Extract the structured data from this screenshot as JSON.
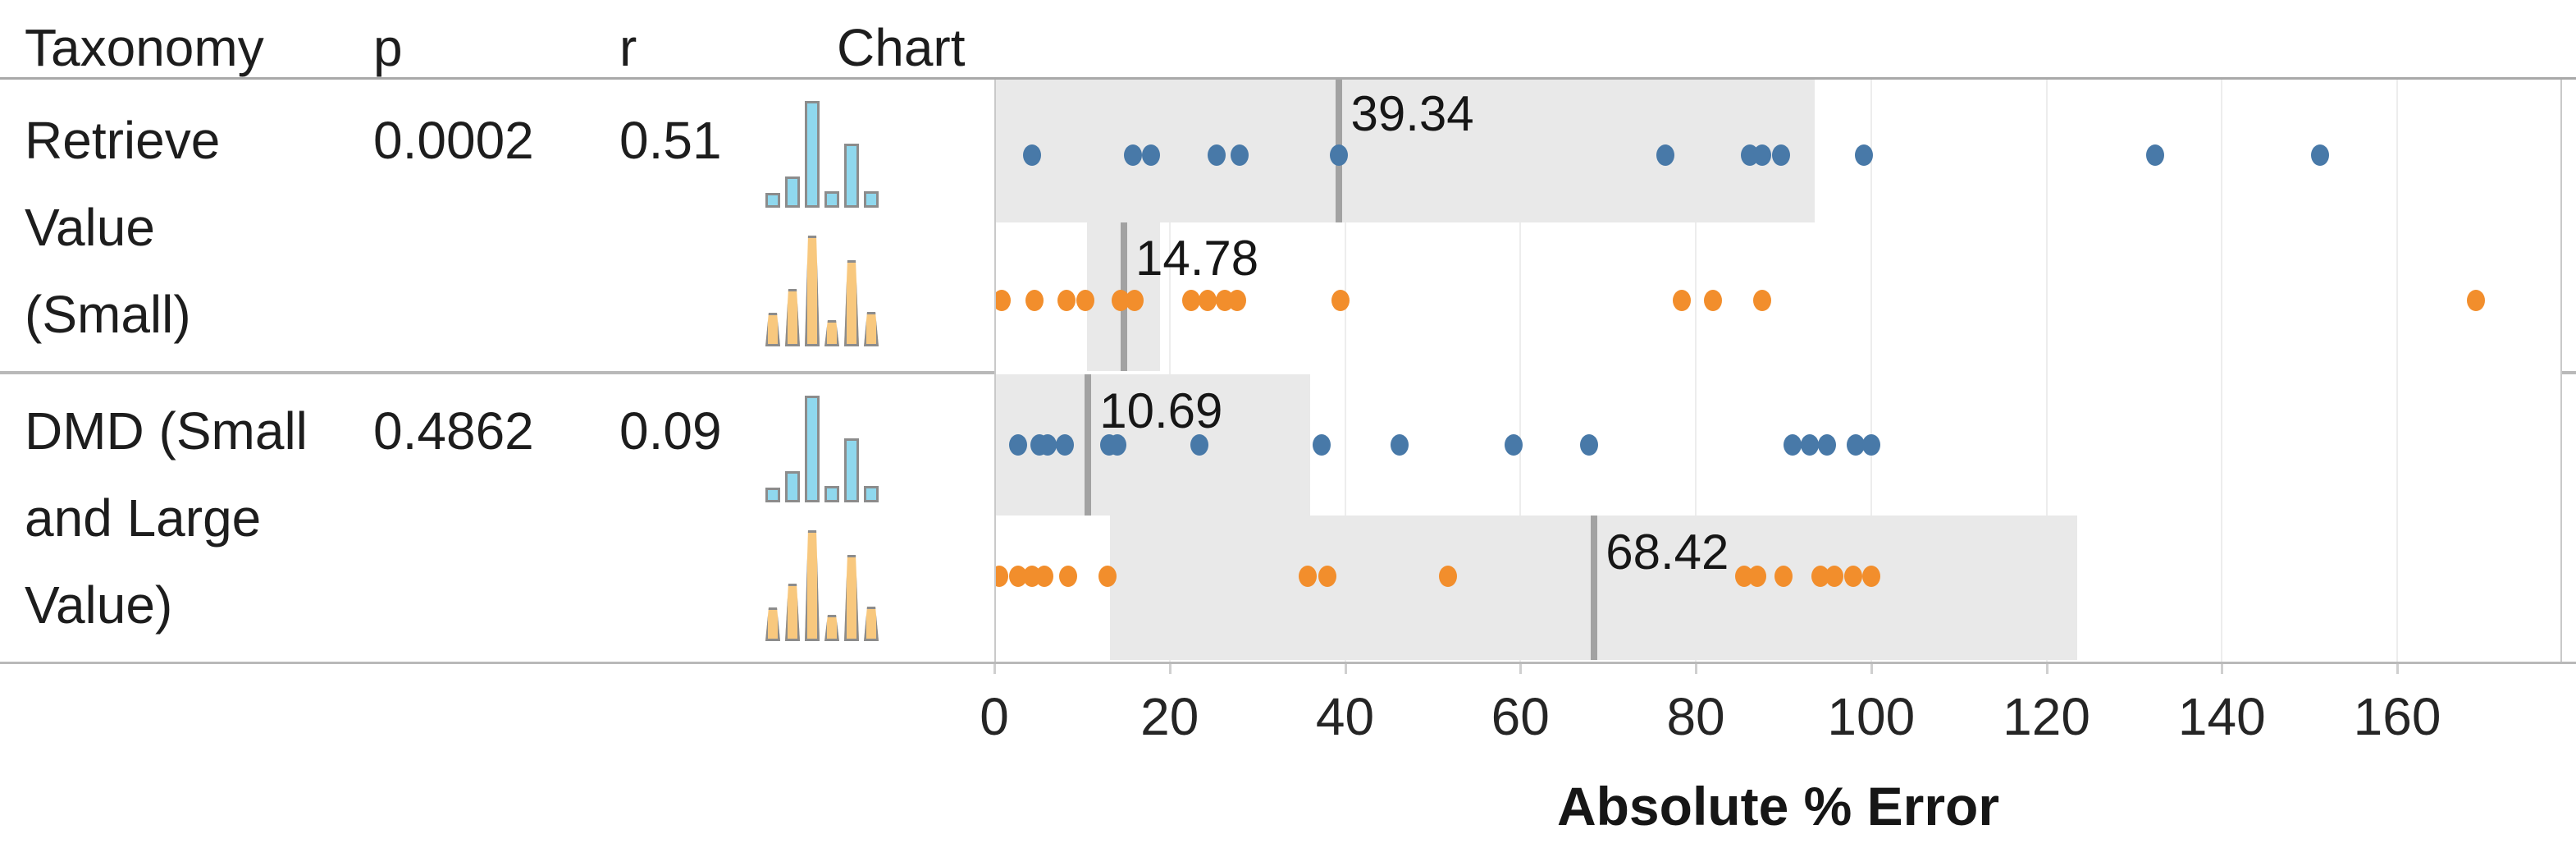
{
  "header": {
    "taxonomy": "Taxonomy",
    "p": "p",
    "r": "r",
    "chart": "Chart"
  },
  "rows": [
    {
      "taxonomy_lines": [
        "Retrieve",
        "Value",
        "(Small)"
      ],
      "p": "0.0002",
      "r": "0.51"
    },
    {
      "taxonomy_lines": [
        "DMD (Small",
        "and Large",
        "Value)"
      ],
      "p": "0.4862",
      "r": "0.09"
    }
  ],
  "colors": {
    "blue_dot": "#4879A8",
    "orange_dot": "#F28E2C",
    "band_gray": "#E9E9E9",
    "mean_line_gray": "#A2A2A2",
    "hist_blue_fill": "#8FD8EE",
    "hist_orange_fill": "#F8C87E",
    "hist_stroke": "#8C8C8C"
  },
  "histograms": {
    "blue": {
      "bars": [
        0.14,
        0.29,
        1.0,
        0.15,
        0.6,
        0.15
      ]
    },
    "orange": {
      "bars": [
        0.3,
        0.52,
        1.0,
        0.24,
        0.78,
        0.31
      ]
    }
  },
  "chart_data": {
    "type": "scatter",
    "title": "",
    "xlabel": "Absolute % Error",
    "ylabel": "",
    "x_ticks": [
      0,
      20,
      40,
      60,
      80,
      100,
      120,
      140,
      160
    ],
    "x_domain": [
      0,
      178.8
    ],
    "grid": true,
    "legend_position": "none",
    "lanes": [
      {
        "row": 0,
        "series": "blue",
        "band": [
          0,
          93.6
        ],
        "mean": 39.34,
        "mean_label": "39.34",
        "dots": [
          4.3,
          15.8,
          17.9,
          25.4,
          28.0,
          39.3,
          76.5,
          86.2,
          87.6,
          89.7,
          99.2,
          132.4,
          151.2
        ]
      },
      {
        "row": 0,
        "series": "orange",
        "band": [
          10.6,
          18.9
        ],
        "mean": 14.78,
        "mean_label": "14.78",
        "dots": [
          0.8,
          4.6,
          8.2,
          10.4,
          14.4,
          16.0,
          22.5,
          24.3,
          26.3,
          27.7,
          39.5,
          78.4,
          82.0,
          87.6,
          169.0
        ]
      },
      {
        "row": 1,
        "series": "blue",
        "band": [
          0,
          36.0
        ],
        "mean": 10.69,
        "mean_label": "10.69",
        "dots": [
          2.7,
          5.1,
          6.1,
          8.0,
          13.1,
          14.0,
          23.4,
          37.3,
          46.2,
          59.2,
          67.8,
          91.0,
          93.0,
          95.0,
          98.2,
          100.0
        ]
      },
      {
        "row": 1,
        "series": "orange",
        "band": [
          13.2,
          123.5
        ],
        "mean": 68.42,
        "mean_label": "68.42",
        "dots": [
          0.6,
          2.7,
          4.3,
          5.7,
          8.4,
          12.9,
          35.7,
          38.0,
          51.7,
          85.5,
          87.0,
          90.0,
          94.2,
          95.8,
          98.0,
          100.0
        ]
      }
    ]
  }
}
